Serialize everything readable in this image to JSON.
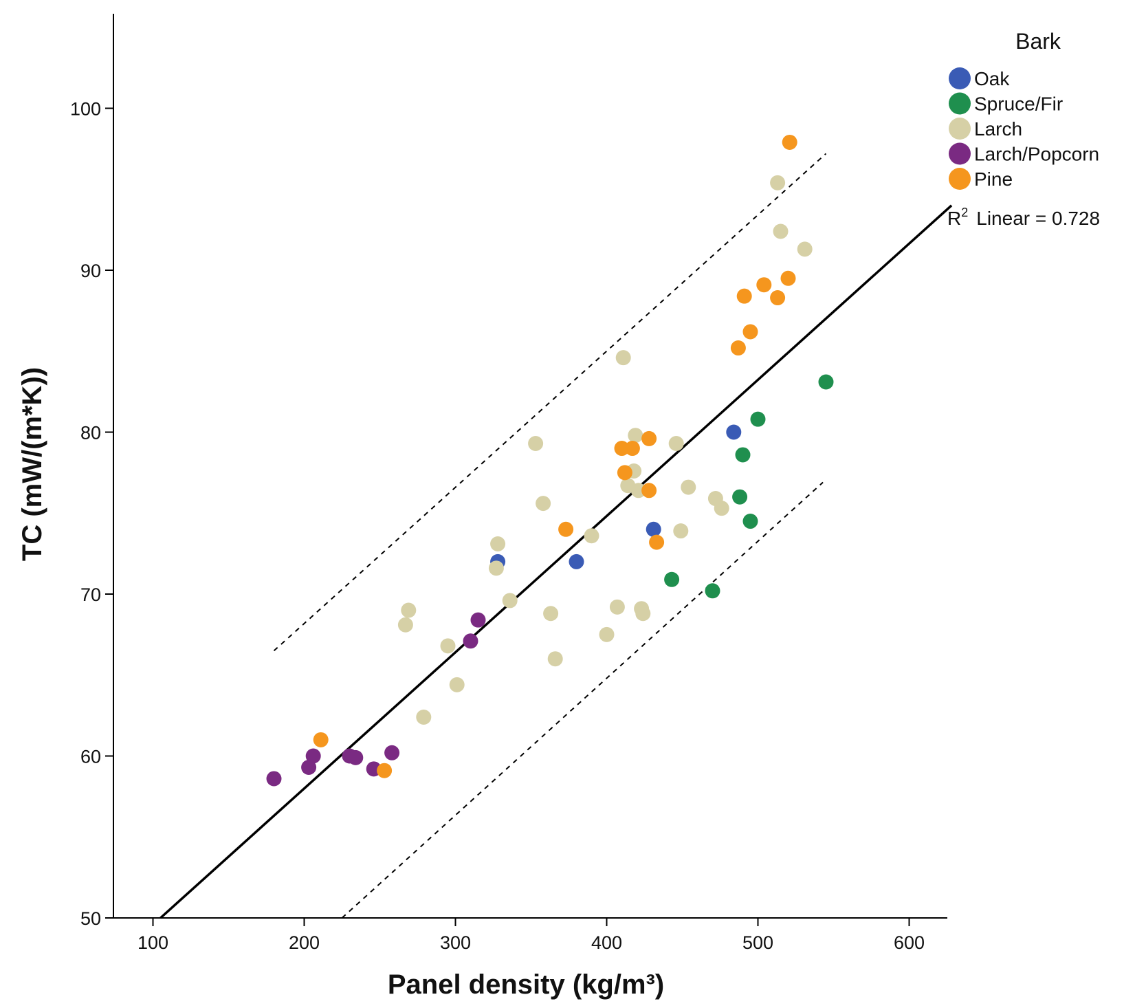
{
  "chart_data": {
    "type": "scatter",
    "title": "",
    "xlabel": "Panel density (kg/m³)",
    "ylabel": "TC (mW/(m*K))",
    "xlim": [
      72,
      628
    ],
    "ylim": [
      50,
      105.5
    ],
    "xticks": [
      100,
      200,
      300,
      400,
      500,
      600
    ],
    "yticks": [
      50,
      60,
      70,
      80,
      90,
      100
    ],
    "xtick_labels": [
      "100",
      "200",
      "300",
      "400",
      "500",
      "600"
    ],
    "ytick_labels": [
      "50",
      "60",
      "70",
      "80",
      "90",
      "100"
    ],
    "legend_title": "Bark",
    "legend_position": "top-right",
    "annotation": {
      "r2_prefix": "R",
      "r2_sup": "2",
      "r2_text": "Linear = 0.728"
    },
    "fit_line": {
      "x": [
        105,
        628
      ],
      "y": [
        50,
        94
      ]
    },
    "upper_bound": {
      "x": [
        180,
        545
      ],
      "y": [
        66.5,
        97.2
      ]
    },
    "lower_bound": {
      "x": [
        225,
        543
      ],
      "y": [
        50,
        76.9
      ]
    },
    "series": [
      {
        "name": "Oak",
        "color": "#3a5bb5",
        "points": [
          [
            328,
            72.0
          ],
          [
            380,
            72.0
          ],
          [
            431,
            74.0
          ],
          [
            484,
            80.0
          ]
        ]
      },
      {
        "name": "Spruce/Fir",
        "color": "#1f8f4e",
        "points": [
          [
            443,
            70.9
          ],
          [
            470,
            70.2
          ],
          [
            488,
            76.0
          ],
          [
            490,
            78.6
          ],
          [
            495,
            74.5
          ],
          [
            500,
            80.8
          ],
          [
            545,
            83.1
          ]
        ]
      },
      {
        "name": "Larch",
        "color": "#d6d0a6",
        "points": [
          [
            267,
            68.1
          ],
          [
            269,
            69.0
          ],
          [
            279,
            62.4
          ],
          [
            295,
            66.8
          ],
          [
            301,
            64.4
          ],
          [
            327,
            71.6
          ],
          [
            328,
            73.1
          ],
          [
            336,
            69.6
          ],
          [
            353,
            79.3
          ],
          [
            358,
            75.6
          ],
          [
            363,
            68.8
          ],
          [
            366,
            66.0
          ],
          [
            390,
            73.6
          ],
          [
            400,
            67.5
          ],
          [
            407,
            69.2
          ],
          [
            411,
            84.6
          ],
          [
            414,
            76.7
          ],
          [
            418,
            77.6
          ],
          [
            419,
            79.8
          ],
          [
            421,
            76.4
          ],
          [
            423,
            69.1
          ],
          [
            424,
            68.8
          ],
          [
            446,
            79.3
          ],
          [
            449,
            73.9
          ],
          [
            454,
            76.6
          ],
          [
            472,
            75.9
          ],
          [
            476,
            75.3
          ],
          [
            513,
            95.4
          ],
          [
            515,
            92.4
          ],
          [
            531,
            91.3
          ]
        ]
      },
      {
        "name": "Larch/Popcorn",
        "color": "#7a2a82",
        "points": [
          [
            180,
            58.6
          ],
          [
            203,
            59.3
          ],
          [
            206,
            60.0
          ],
          [
            230,
            60.0
          ],
          [
            234,
            59.9
          ],
          [
            246,
            59.2
          ],
          [
            258,
            60.2
          ],
          [
            310,
            67.1
          ],
          [
            315,
            68.4
          ]
        ]
      },
      {
        "name": "Pine",
        "color": "#f5961e",
        "points": [
          [
            211,
            61.0
          ],
          [
            253,
            59.1
          ],
          [
            373,
            74.0
          ],
          [
            410,
            79.0
          ],
          [
            412,
            77.5
          ],
          [
            417,
            79.0
          ],
          [
            428,
            79.6
          ],
          [
            428,
            76.4
          ],
          [
            433,
            73.2
          ],
          [
            487,
            85.2
          ],
          [
            491,
            88.4
          ],
          [
            495,
            86.2
          ],
          [
            504,
            89.1
          ],
          [
            513,
            88.3
          ],
          [
            520,
            89.5
          ],
          [
            521,
            97.9
          ]
        ]
      }
    ]
  }
}
